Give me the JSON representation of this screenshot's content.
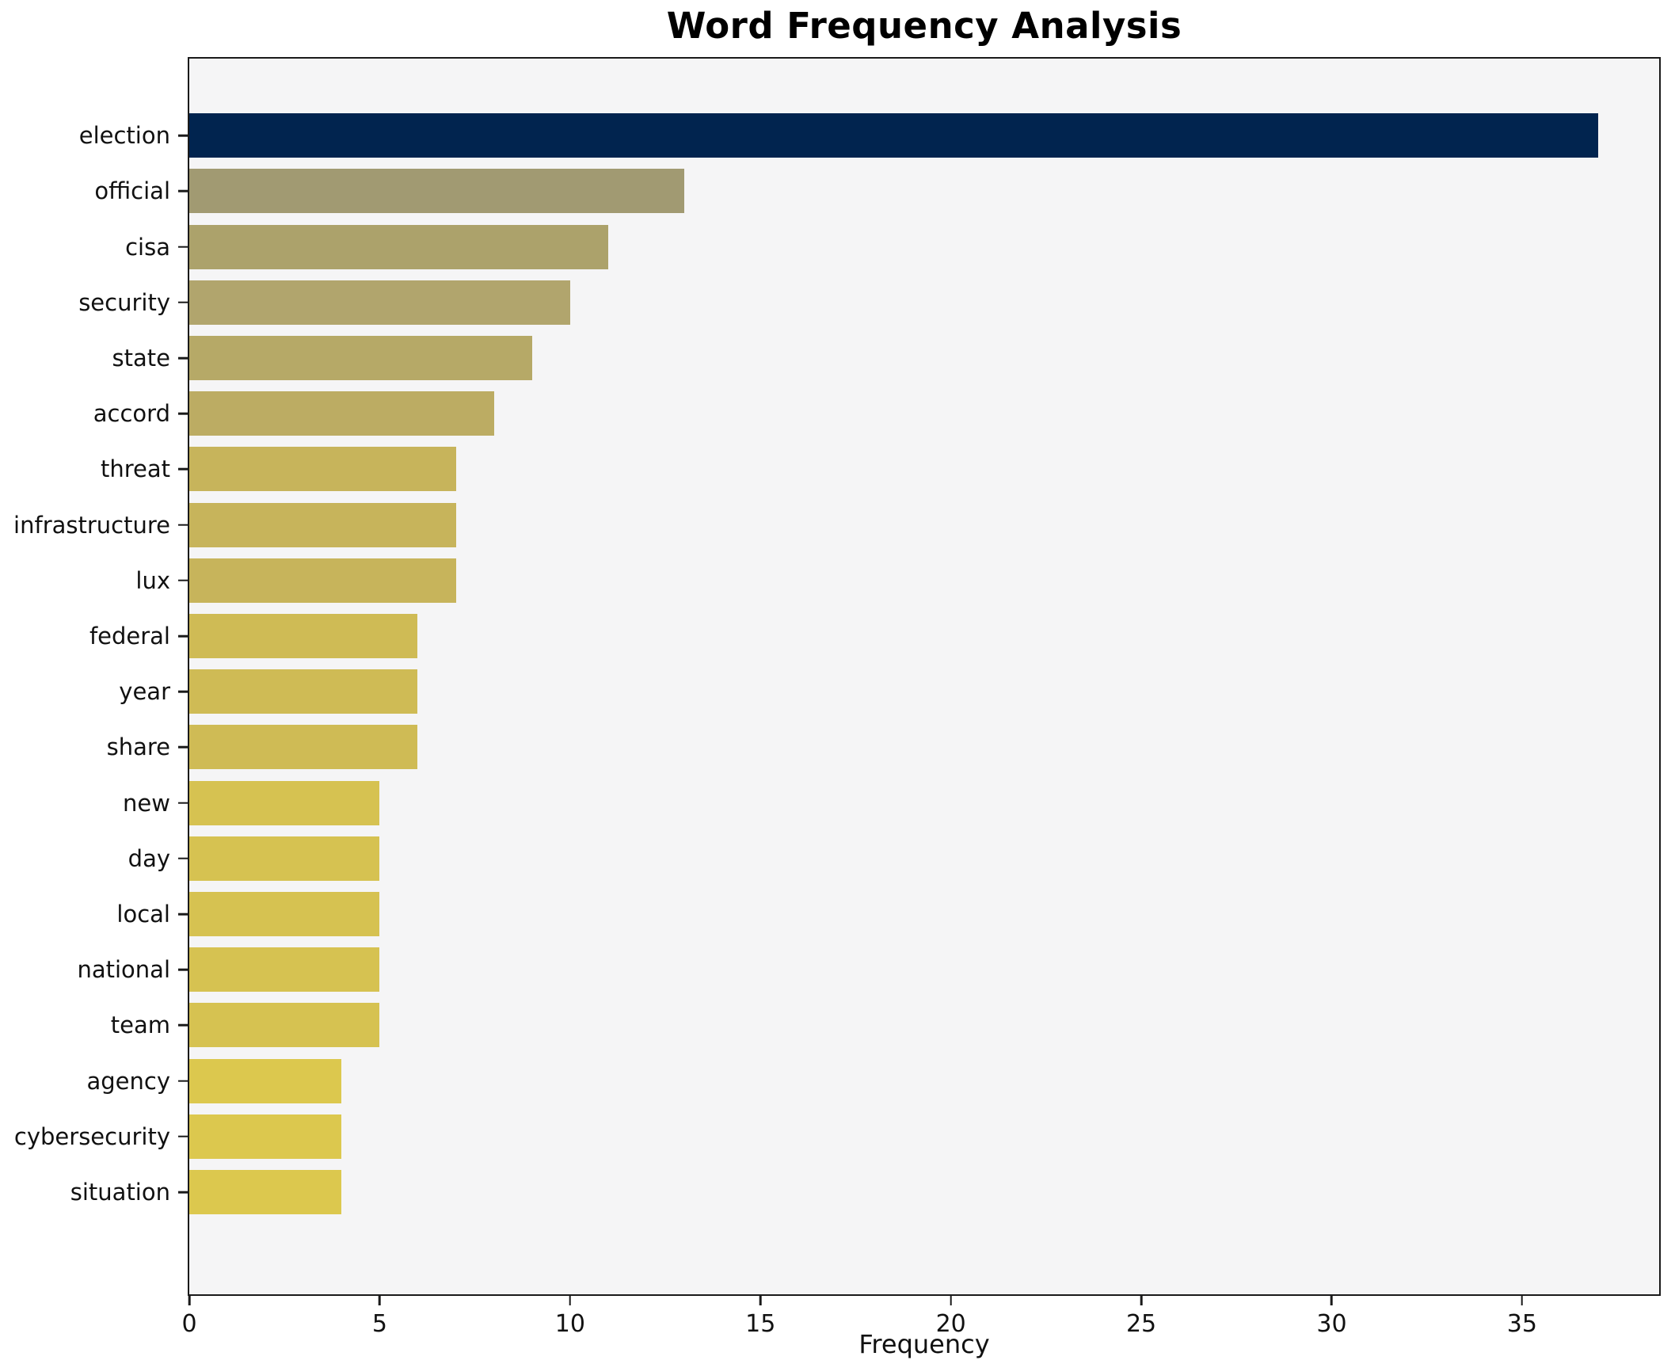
{
  "title": "Word Frequency Analysis",
  "xlabel": "Frequency",
  "chart_data": {
    "type": "bar",
    "orientation": "horizontal",
    "title": "Word Frequency Analysis",
    "xlabel": "Frequency",
    "ylabel": "",
    "categories": [
      "election",
      "official",
      "cisa",
      "security",
      "state",
      "accord",
      "threat",
      "infrastructure",
      "lux",
      "federal",
      "year",
      "share",
      "new",
      "day",
      "local",
      "national",
      "team",
      "agency",
      "cybersecurity",
      "situation"
    ],
    "values": [
      37,
      13,
      11,
      10,
      9,
      8,
      7,
      7,
      7,
      6,
      6,
      6,
      5,
      5,
      5,
      5,
      5,
      4,
      4,
      4
    ],
    "bar_colors": [
      "#01244f",
      "#a19a72",
      "#aca26b",
      "#b1a56d",
      "#b6a967",
      "#bcac63",
      "#c7b45b",
      "#c7b45b",
      "#c7b45b",
      "#cfbb55",
      "#cfbb55",
      "#cfbb55",
      "#d6c251",
      "#d6c251",
      "#d6c251",
      "#d6c251",
      "#d6c251",
      "#dcc84e",
      "#dcc84e",
      "#dcc84e"
    ],
    "x_ticks": [
      0,
      5,
      10,
      15,
      20,
      25,
      30,
      35
    ],
    "xlim": [
      0,
      38.6
    ],
    "grid": false,
    "legend": "none",
    "plot_background": "#f5f5f6",
    "figure_background": "#ffffff",
    "spine_color": "#1a1a1a"
  }
}
